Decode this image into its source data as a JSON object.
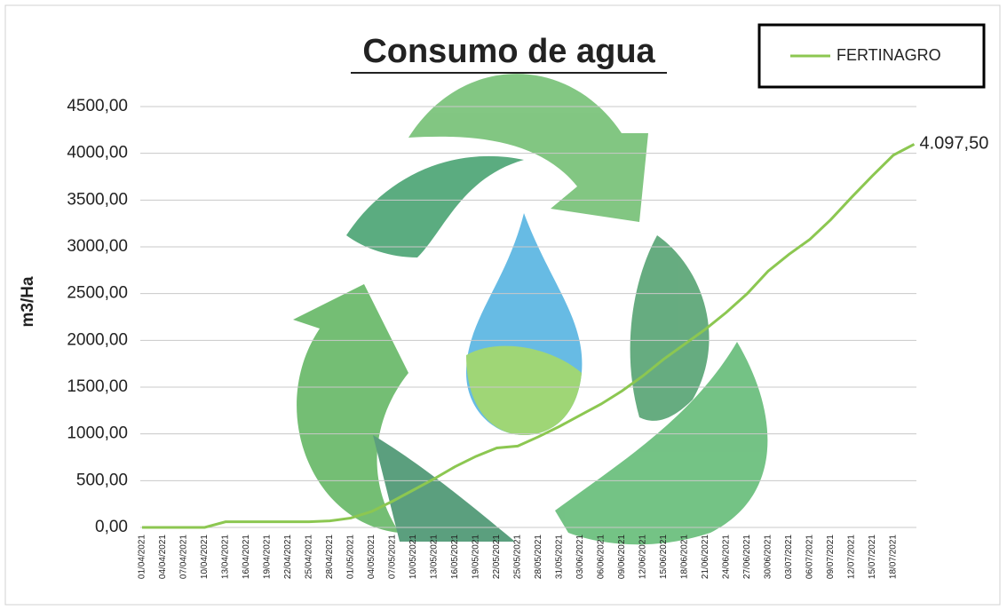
{
  "chart_data": {
    "type": "line",
    "title": "Consumo de agua",
    "y_label": "m3/Ha",
    "categories": [
      "01/04/2021",
      "04/04/2021",
      "07/04/2021",
      "10/04/2021",
      "13/04/2021",
      "16/04/2021",
      "19/04/2021",
      "22/04/2021",
      "25/04/2021",
      "28/04/2021",
      "01/05/2021",
      "04/05/2021",
      "07/05/2021",
      "10/05/2021",
      "13/05/2021",
      "16/05/2021",
      "19/05/2021",
      "22/05/2021",
      "25/05/2021",
      "28/05/2021",
      "31/05/2021",
      "03/06/2021",
      "06/06/2021",
      "09/06/2021",
      "12/06/2021",
      "15/06/2021",
      "18/06/2021",
      "21/06/2021",
      "24/06/2021",
      "27/06/2021",
      "30/06/2021",
      "03/07/2021",
      "06/07/2021",
      "09/07/2021",
      "12/07/2021",
      "15/07/2021",
      "18/07/2021",
      null
    ],
    "series": [
      {
        "name": "FERTINAGRO",
        "color": "#8cc751",
        "values": [
          0,
          0,
          0,
          0,
          60,
          60,
          60,
          60,
          60,
          70,
          100,
          170,
          280,
          400,
          520,
          650,
          760,
          850,
          870,
          970,
          1080,
          1200,
          1320,
          1460,
          1620,
          1800,
          1960,
          2120,
          2300,
          2500,
          2740,
          2920,
          3080,
          3290,
          3530,
          3760,
          3980,
          4097.5
        ],
        "value_labels": [
          null,
          null,
          null,
          null,
          null,
          null,
          null,
          null,
          null,
          null,
          null,
          null,
          null,
          null,
          null,
          null,
          null,
          null,
          null,
          null,
          null,
          null,
          null,
          null,
          null,
          null,
          null,
          null,
          null,
          null,
          null,
          null,
          null,
          null,
          null,
          null,
          null,
          "4.097,50"
        ]
      }
    ],
    "ylim": [
      0,
      4500
    ],
    "yticks": [
      {
        "value": 0,
        "label": "0,00"
      },
      {
        "value": 500,
        "label": "500,00"
      },
      {
        "value": 1000,
        "label": "1000,00"
      },
      {
        "value": 1500,
        "label": "1500,00"
      },
      {
        "value": 2000,
        "label": "2000,00"
      },
      {
        "value": 2500,
        "label": "2500,00"
      },
      {
        "value": 3000,
        "label": "3000,00"
      },
      {
        "value": 3500,
        "label": "3500,00"
      },
      {
        "value": 4000,
        "label": "4000,00"
      },
      {
        "value": 4500,
        "label": "4500,00"
      }
    ],
    "grid": true,
    "legend": "top-right"
  }
}
